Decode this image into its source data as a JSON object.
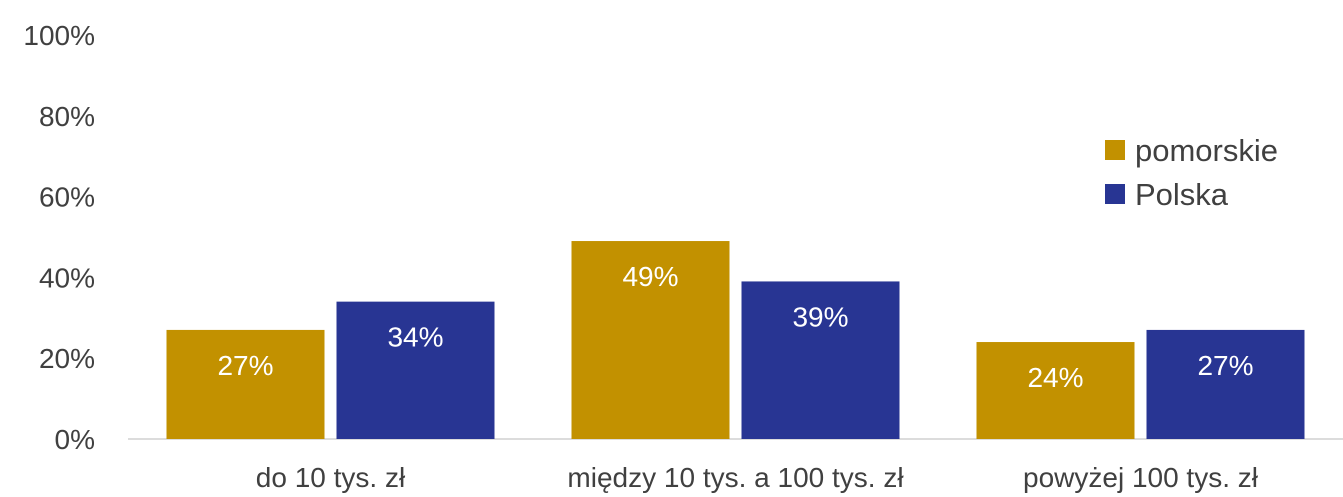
{
  "chart_data": {
    "type": "bar",
    "categories": [
      "do 10 tys. zł",
      "między 10 tys. a 100 tys. zł",
      "powyżej 100 tys. zł"
    ],
    "series": [
      {
        "name": "pomorskie",
        "values": [
          27,
          49,
          24
        ],
        "labels": [
          "27%",
          "49%",
          "24%"
        ],
        "color": "#c29100"
      },
      {
        "name": "Polska",
        "values": [
          34,
          39,
          27
        ],
        "labels": [
          "34%",
          "39%",
          "27%"
        ],
        "color": "#283593"
      }
    ],
    "ylim": [
      0,
      100
    ],
    "yticks": [
      0,
      20,
      40,
      60,
      80,
      100
    ],
    "ytick_labels": [
      "0%",
      "20%",
      "40%",
      "60%",
      "80%",
      "100%"
    ],
    "legend": {
      "placement": "right",
      "entries": [
        "pomorskie",
        "Polska"
      ]
    },
    "grid": false,
    "title": "",
    "xlabel": "",
    "ylabel": ""
  }
}
